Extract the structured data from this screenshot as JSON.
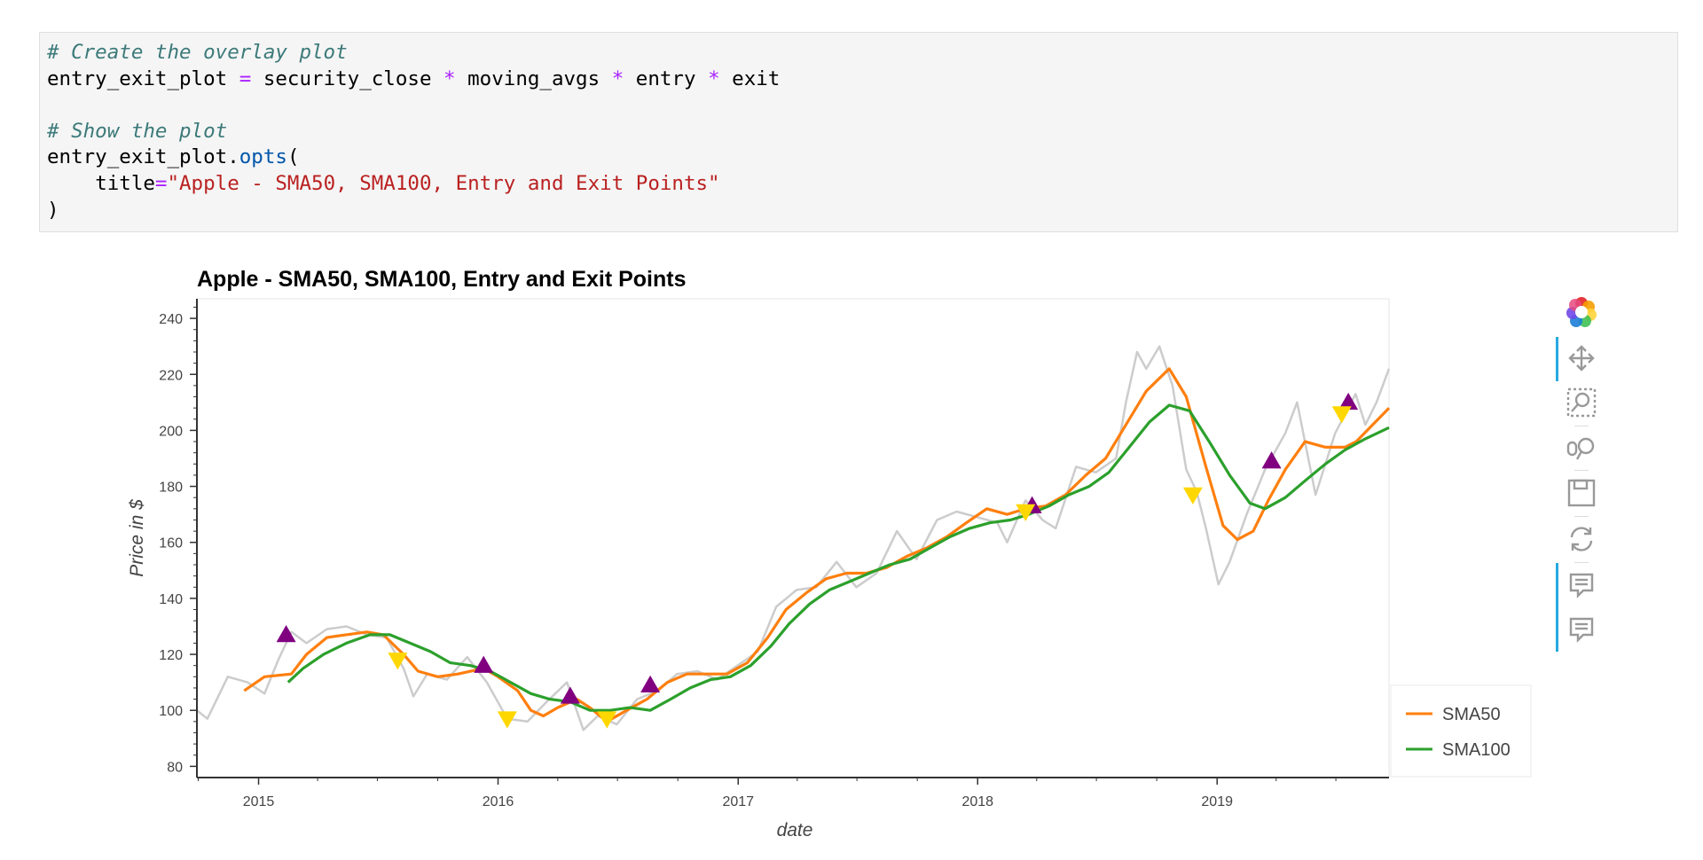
{
  "code": {
    "comment1": "# Create the overlay plot",
    "line2": {
      "var": "entry_exit_plot",
      "eq": " = ",
      "a": "security_close",
      "mul1": " * ",
      "b": "moving_avgs",
      "mul2": " * ",
      "c": "entry",
      "mul3": " * ",
      "d": "exit"
    },
    "comment2": "# Show the plot",
    "line5": {
      "obj": "entry_exit_plot.",
      "attr": "opts",
      "paren": "("
    },
    "line6": {
      "indent": "    ",
      "kw": "title",
      "eq": "=",
      "str": "\"Apple - SMA50, SMA100, Entry and Exit Points\""
    },
    "line7": ")"
  },
  "toolbar": {
    "icons": [
      "bokeh-logo-icon",
      "pan-icon",
      "box-zoom-icon",
      "wheel-zoom-icon",
      "save-icon",
      "reset-icon",
      "hover-icon",
      "hover-icon"
    ]
  },
  "colors": {
    "close": "#cccccc",
    "sma50": "#ff7f0e",
    "sma100": "#2ca02c",
    "entry": "#800080",
    "exit": "#ffd700",
    "accent": "#26aae1"
  },
  "chart_data": {
    "type": "line",
    "title": "Apple - SMA50, SMA100, Entry and Exit Points",
    "xlabel": "date",
    "ylabel": "Price in $",
    "x_ticks": [
      "2015",
      "2016",
      "2017",
      "2018",
      "2019"
    ],
    "y_ticks": [
      "80",
      "100",
      "120",
      "140",
      "160",
      "180",
      "200",
      "220",
      "240"
    ],
    "xlim": [
      "2014-09-29",
      "2019-09-20"
    ],
    "ylim": [
      76,
      247
    ],
    "legend": {
      "position": "bottom-right",
      "entries": [
        "SMA50",
        "SMA100"
      ]
    },
    "series": [
      {
        "name": "",
        "kind": "close",
        "points": [
          [
            "2014-09-29",
            100
          ],
          [
            "2014-10-15",
            97
          ],
          [
            "2014-11-15",
            112
          ],
          [
            "2014-12-15",
            110
          ],
          [
            "2015-01-10",
            106
          ],
          [
            "2015-01-31",
            118
          ],
          [
            "2015-02-20",
            128
          ],
          [
            "2015-03-15",
            124
          ],
          [
            "2015-04-15",
            129
          ],
          [
            "2015-05-15",
            130
          ],
          [
            "2015-06-15",
            127
          ],
          [
            "2015-07-15",
            126
          ],
          [
            "2015-08-10",
            115
          ],
          [
            "2015-08-25",
            105
          ],
          [
            "2015-09-15",
            113
          ],
          [
            "2015-10-15",
            111
          ],
          [
            "2015-11-15",
            119
          ],
          [
            "2015-12-15",
            110
          ],
          [
            "2016-01-15",
            97
          ],
          [
            "2016-02-15",
            96
          ],
          [
            "2016-03-15",
            103
          ],
          [
            "2016-04-15",
            110
          ],
          [
            "2016-05-10",
            93
          ],
          [
            "2016-06-01",
            98
          ],
          [
            "2016-06-30",
            95
          ],
          [
            "2016-07-31",
            104
          ],
          [
            "2016-08-31",
            107
          ],
          [
            "2016-09-30",
            113
          ],
          [
            "2016-10-31",
            114
          ],
          [
            "2016-11-30",
            111
          ],
          [
            "2016-12-31",
            116
          ],
          [
            "2017-01-31",
            121
          ],
          [
            "2017-02-28",
            137
          ],
          [
            "2017-03-31",
            143
          ],
          [
            "2017-04-30",
            144
          ],
          [
            "2017-05-31",
            153
          ],
          [
            "2017-06-30",
            144
          ],
          [
            "2017-07-31",
            149
          ],
          [
            "2017-08-31",
            164
          ],
          [
            "2017-09-30",
            154
          ],
          [
            "2017-10-31",
            168
          ],
          [
            "2017-11-30",
            171
          ],
          [
            "2017-12-31",
            169
          ],
          [
            "2018-01-31",
            167
          ],
          [
            "2018-02-15",
            160
          ],
          [
            "2018-03-15",
            175
          ],
          [
            "2018-04-10",
            168
          ],
          [
            "2018-04-30",
            165
          ],
          [
            "2018-05-31",
            187
          ],
          [
            "2018-06-30",
            185
          ],
          [
            "2018-07-31",
            190
          ],
          [
            "2018-08-15",
            210
          ],
          [
            "2018-09-01",
            228
          ],
          [
            "2018-09-15",
            222
          ],
          [
            "2018-10-05",
            230
          ],
          [
            "2018-10-25",
            216
          ],
          [
            "2018-11-15",
            186
          ],
          [
            "2018-12-01",
            178
          ],
          [
            "2018-12-15",
            165
          ],
          [
            "2019-01-03",
            145
          ],
          [
            "2019-01-20",
            153
          ],
          [
            "2019-02-15",
            170
          ],
          [
            "2019-03-15",
            186
          ],
          [
            "2019-04-15",
            199
          ],
          [
            "2019-05-03",
            210
          ],
          [
            "2019-05-31",
            177
          ],
          [
            "2019-06-30",
            199
          ],
          [
            "2019-07-31",
            213
          ],
          [
            "2019-08-15",
            202
          ],
          [
            "2019-09-01",
            210
          ],
          [
            "2019-09-20",
            222
          ]
        ]
      },
      {
        "name": "SMA50",
        "kind": "sma50",
        "points": [
          [
            "2014-12-10",
            107
          ],
          [
            "2015-01-10",
            112
          ],
          [
            "2015-02-20",
            113
          ],
          [
            "2015-03-15",
            120
          ],
          [
            "2015-04-15",
            126
          ],
          [
            "2015-05-15",
            127
          ],
          [
            "2015-06-15",
            128
          ],
          [
            "2015-07-10",
            127
          ],
          [
            "2015-08-10",
            120
          ],
          [
            "2015-09-01",
            114
          ],
          [
            "2015-10-01",
            112
          ],
          [
            "2015-11-01",
            113
          ],
          [
            "2015-12-10",
            115
          ],
          [
            "2016-01-01",
            112
          ],
          [
            "2016-01-31",
            107
          ],
          [
            "2016-02-20",
            100
          ],
          [
            "2016-03-10",
            98
          ],
          [
            "2016-04-01",
            101
          ],
          [
            "2016-04-30",
            104
          ],
          [
            "2016-05-20",
            101
          ],
          [
            "2016-06-15",
            96
          ],
          [
            "2016-07-15",
            100
          ],
          [
            "2016-08-15",
            104
          ],
          [
            "2016-09-15",
            110
          ],
          [
            "2016-10-15",
            113
          ],
          [
            "2016-11-15",
            113
          ],
          [
            "2016-12-15",
            113
          ],
          [
            "2017-01-15",
            117
          ],
          [
            "2017-02-15",
            126
          ],
          [
            "2017-03-15",
            136
          ],
          [
            "2017-04-15",
            142
          ],
          [
            "2017-05-15",
            147
          ],
          [
            "2017-06-15",
            149
          ],
          [
            "2017-07-15",
            149
          ],
          [
            "2017-08-15",
            151
          ],
          [
            "2017-09-15",
            155
          ],
          [
            "2017-10-15",
            158
          ],
          [
            "2017-11-15",
            162
          ],
          [
            "2017-12-15",
            167
          ],
          [
            "2018-01-15",
            172
          ],
          [
            "2018-02-15",
            170
          ],
          [
            "2018-03-15",
            172
          ],
          [
            "2018-04-15",
            173
          ],
          [
            "2018-05-15",
            177
          ],
          [
            "2018-06-15",
            184
          ],
          [
            "2018-07-15",
            190
          ],
          [
            "2018-08-15",
            202
          ],
          [
            "2018-09-15",
            214
          ],
          [
            "2018-10-20",
            222
          ],
          [
            "2018-11-15",
            212
          ],
          [
            "2018-12-15",
            187
          ],
          [
            "2019-01-10",
            166
          ],
          [
            "2019-02-01",
            161
          ],
          [
            "2019-02-25",
            164
          ],
          [
            "2019-03-20",
            175
          ],
          [
            "2019-04-15",
            186
          ],
          [
            "2019-05-15",
            196
          ],
          [
            "2019-06-15",
            194
          ],
          [
            "2019-07-15",
            194
          ],
          [
            "2019-08-01",
            196
          ],
          [
            "2019-09-20",
            208
          ]
        ]
      },
      {
        "name": "SMA100",
        "kind": "sma100",
        "points": [
          [
            "2015-02-15",
            110
          ],
          [
            "2015-03-10",
            115
          ],
          [
            "2015-04-10",
            120
          ],
          [
            "2015-05-15",
            124
          ],
          [
            "2015-06-20",
            127
          ],
          [
            "2015-07-20",
            127
          ],
          [
            "2015-08-20",
            124
          ],
          [
            "2015-09-20",
            121
          ],
          [
            "2015-10-20",
            117
          ],
          [
            "2015-11-20",
            116
          ],
          [
            "2015-12-20",
            114
          ],
          [
            "2016-01-20",
            110
          ],
          [
            "2016-02-20",
            106
          ],
          [
            "2016-03-20",
            104
          ],
          [
            "2016-04-20",
            103
          ],
          [
            "2016-05-20",
            100
          ],
          [
            "2016-06-20",
            100
          ],
          [
            "2016-07-20",
            101
          ],
          [
            "2016-08-20",
            100
          ],
          [
            "2016-09-20",
            104
          ],
          [
            "2016-10-20",
            108
          ],
          [
            "2016-11-20",
            111
          ],
          [
            "2016-12-20",
            112
          ],
          [
            "2017-01-20",
            116
          ],
          [
            "2017-02-20",
            123
          ],
          [
            "2017-03-20",
            131
          ],
          [
            "2017-04-20",
            138
          ],
          [
            "2017-05-20",
            143
          ],
          [
            "2017-06-20",
            146
          ],
          [
            "2017-07-20",
            149
          ],
          [
            "2017-08-20",
            152
          ],
          [
            "2017-09-20",
            154
          ],
          [
            "2017-10-20",
            158
          ],
          [
            "2017-11-20",
            162
          ],
          [
            "2017-12-20",
            165
          ],
          [
            "2018-01-20",
            167
          ],
          [
            "2018-02-20",
            168
          ],
          [
            "2018-03-20",
            170
          ],
          [
            "2018-04-20",
            173
          ],
          [
            "2018-05-20",
            177
          ],
          [
            "2018-06-20",
            180
          ],
          [
            "2018-07-20",
            185
          ],
          [
            "2018-08-20",
            194
          ],
          [
            "2018-09-20",
            203
          ],
          [
            "2018-10-20",
            209
          ],
          [
            "2018-11-20",
            207
          ],
          [
            "2018-12-20",
            196
          ],
          [
            "2019-01-20",
            184
          ],
          [
            "2019-02-20",
            174
          ],
          [
            "2019-03-15",
            172
          ],
          [
            "2019-04-15",
            176
          ],
          [
            "2019-05-15",
            182
          ],
          [
            "2019-06-15",
            188
          ],
          [
            "2019-07-15",
            193
          ],
          [
            "2019-08-15",
            197
          ],
          [
            "2019-09-20",
            201
          ]
        ]
      }
    ],
    "entry_points": [
      [
        "2015-02-12",
        127
      ],
      [
        "2015-12-10",
        116
      ],
      [
        "2016-04-20",
        105
      ],
      [
        "2016-08-20",
        109
      ],
      [
        "2018-03-25",
        173
      ],
      [
        "2019-03-25",
        189
      ],
      [
        "2019-07-20",
        210
      ]
    ],
    "exit_points": [
      [
        "2015-08-01",
        118
      ],
      [
        "2016-01-15",
        97
      ],
      [
        "2016-06-15",
        97
      ],
      [
        "2018-03-15",
        171
      ],
      [
        "2018-11-25",
        177
      ],
      [
        "2019-07-10",
        206
      ]
    ]
  }
}
